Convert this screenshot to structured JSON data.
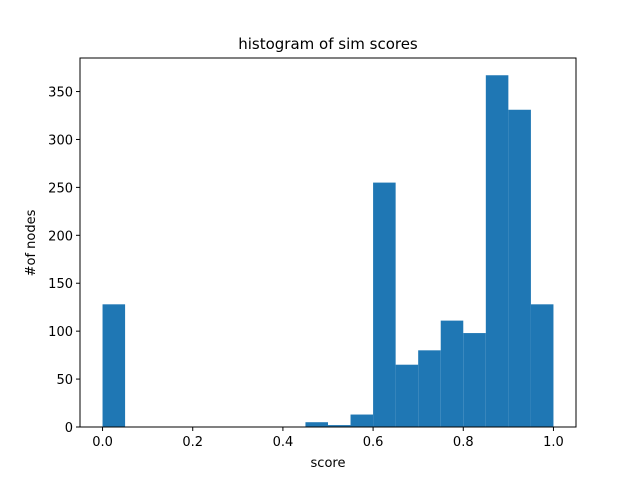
{
  "chart_data": {
    "type": "bar",
    "title": "histogram of sim scores",
    "xlabel": "score",
    "ylabel": "#of nodes",
    "bar_color": "#1f77b4",
    "bin_width": 0.05,
    "bins": [
      {
        "x": 0.0,
        "count": 128
      },
      {
        "x": 0.05,
        "count": 0
      },
      {
        "x": 0.1,
        "count": 0
      },
      {
        "x": 0.15,
        "count": 0
      },
      {
        "x": 0.2,
        "count": 0
      },
      {
        "x": 0.25,
        "count": 0
      },
      {
        "x": 0.3,
        "count": 0
      },
      {
        "x": 0.35,
        "count": 0
      },
      {
        "x": 0.4,
        "count": 0
      },
      {
        "x": 0.45,
        "count": 5
      },
      {
        "x": 0.5,
        "count": 2
      },
      {
        "x": 0.55,
        "count": 13
      },
      {
        "x": 0.6,
        "count": 255
      },
      {
        "x": 0.65,
        "count": 65
      },
      {
        "x": 0.7,
        "count": 80
      },
      {
        "x": 0.75,
        "count": 111
      },
      {
        "x": 0.8,
        "count": 98
      },
      {
        "x": 0.85,
        "count": 367
      },
      {
        "x": 0.9,
        "count": 331
      },
      {
        "x": 0.95,
        "count": 128
      }
    ],
    "xlim": [
      -0.05,
      1.05
    ],
    "ylim": [
      0,
      385
    ],
    "xticks": [
      "0.0",
      "0.2",
      "0.4",
      "0.6",
      "0.8",
      "1.0"
    ],
    "yticks": [
      "0",
      "50",
      "100",
      "150",
      "200",
      "250",
      "300",
      "350"
    ],
    "grid": false
  }
}
